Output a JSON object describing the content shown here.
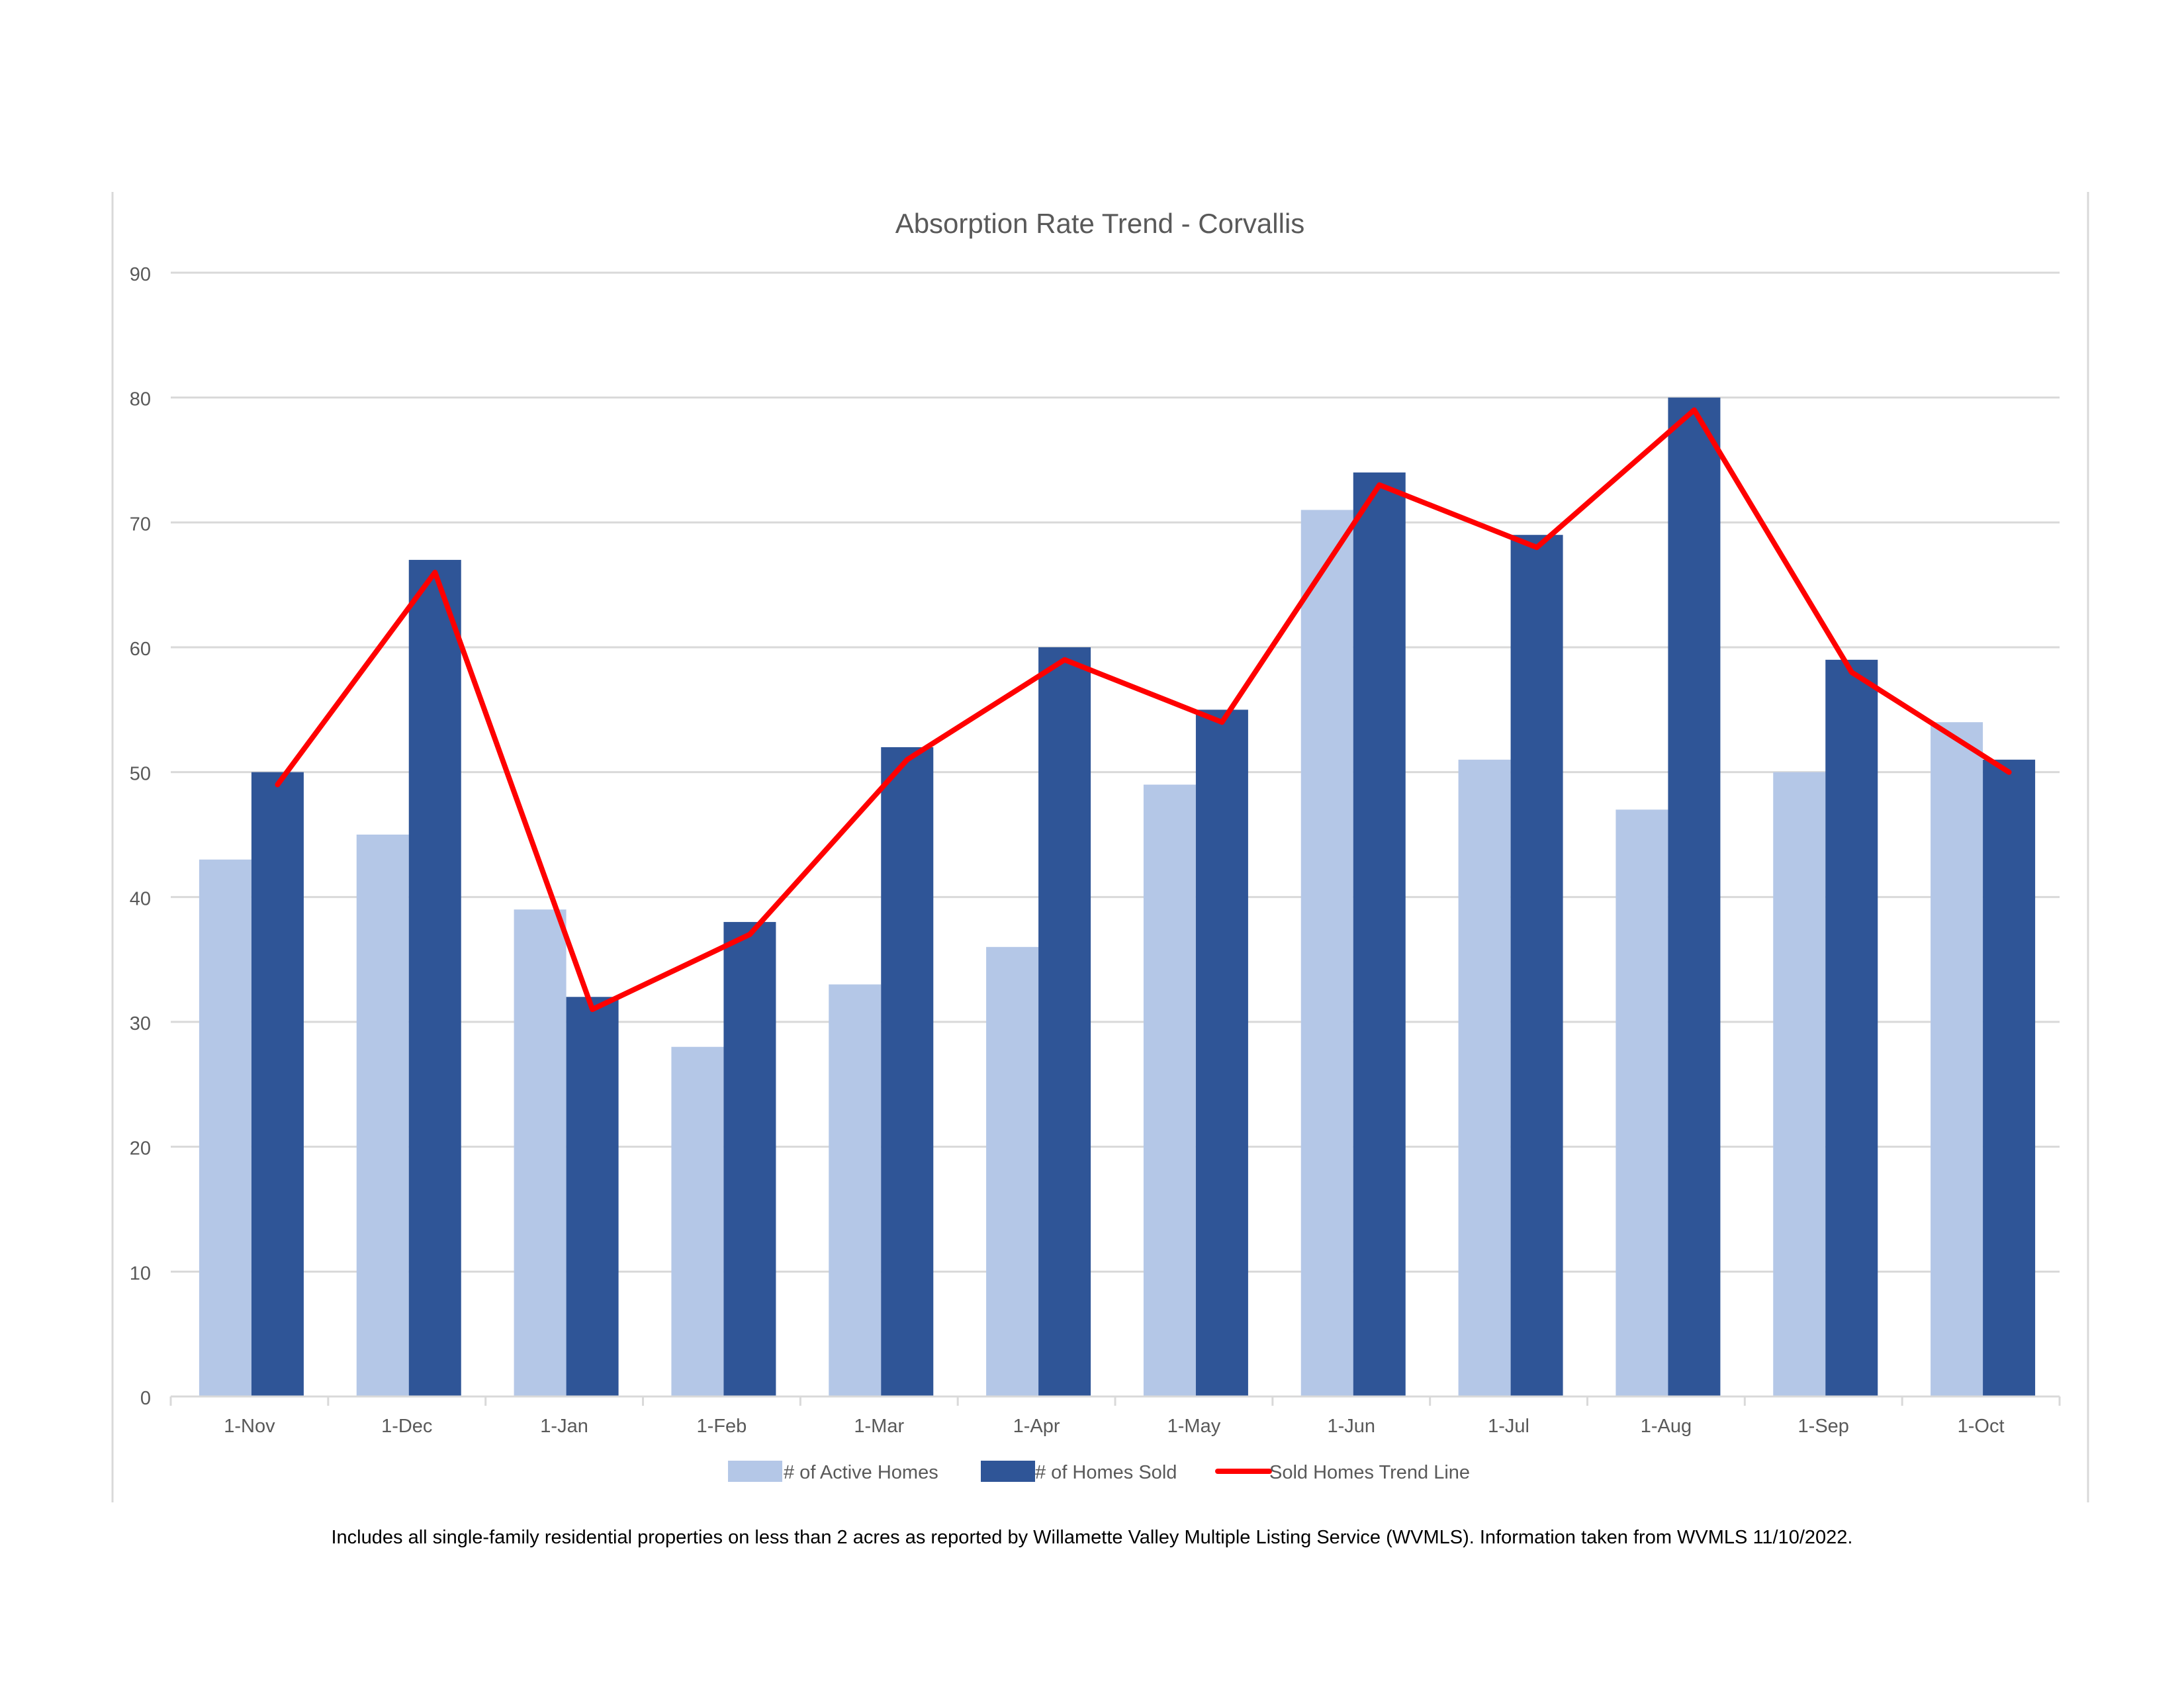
{
  "chart_data": {
    "type": "bar",
    "title": "Absorption Rate Trend - Corvallis",
    "xlabel": "",
    "ylabel": "",
    "ylim": [
      0,
      90
    ],
    "yticks": [
      0,
      10,
      20,
      30,
      40,
      50,
      60,
      70,
      80,
      90
    ],
    "grid": true,
    "legend_position": "bottom",
    "categories": [
      "1-Nov",
      "1-Dec",
      "1-Jan",
      "1-Feb",
      "1-Mar",
      "1-Apr",
      "1-May",
      "1-Jun",
      "1-Jul",
      "1-Aug",
      "1-Sep",
      "1-Oct"
    ],
    "series": [
      {
        "name": "# of Active Homes",
        "type": "bar",
        "color": "#b4c7e7",
        "values": [
          43,
          45,
          39,
          28,
          33,
          36,
          49,
          71,
          51,
          47,
          50,
          54
        ]
      },
      {
        "name": "# of Homes Sold",
        "type": "bar",
        "color": "#2f5597",
        "values": [
          50,
          67,
          32,
          38,
          52,
          60,
          55,
          74,
          69,
          80,
          59,
          51
        ]
      },
      {
        "name": "Sold Homes Trend Line",
        "type": "line",
        "color": "#ff0000",
        "values": [
          49,
          66,
          31,
          37,
          51,
          59,
          54,
          73,
          68,
          79,
          58,
          50
        ]
      }
    ]
  },
  "footnote": "Includes all single-family residential properties on less than 2 acres as reported by Willamette Valley Multiple Listing Service (WVMLS). Information taken from WVMLS 11/10/2022."
}
